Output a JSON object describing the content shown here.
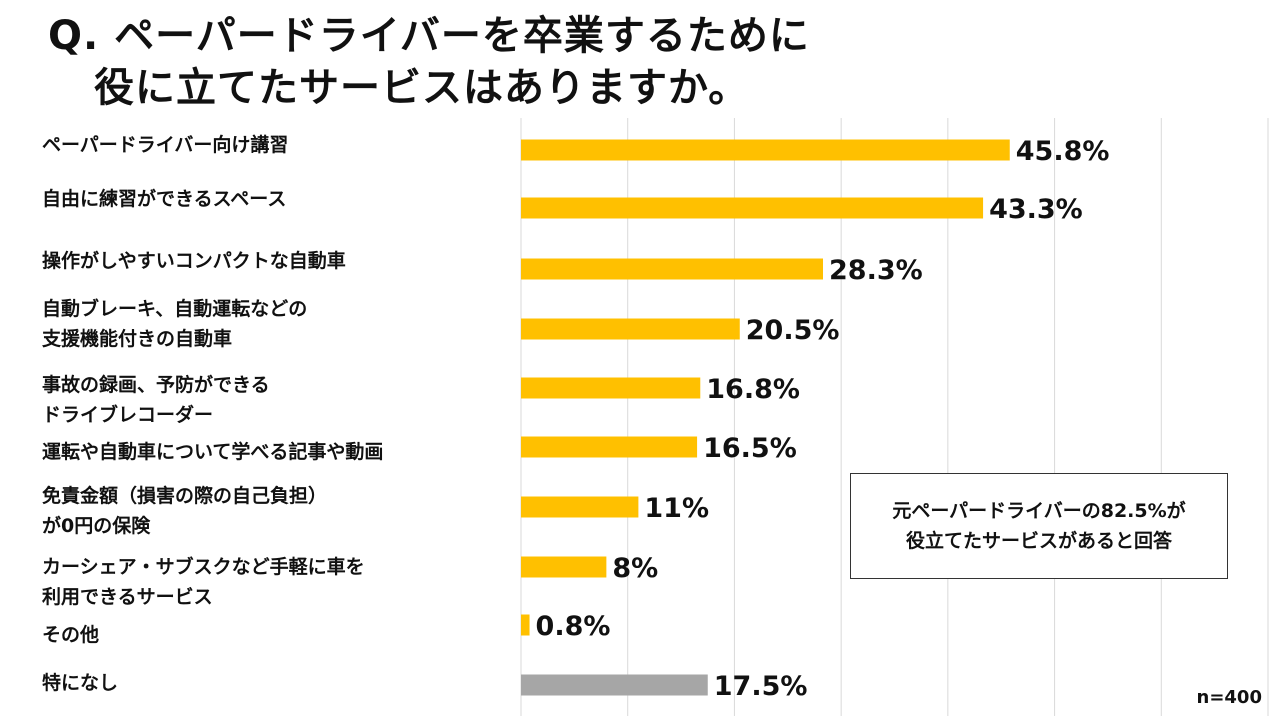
{
  "title": {
    "line1": "Q. ペーパードライバーを卒業するために",
    "line2": "役に立てたサービスはありますか。"
  },
  "note": {
    "line1": "元ペーパードライバーの82.5%が",
    "line2": "役立てたサービスがあると回答"
  },
  "sample_size": "n=400",
  "colors": {
    "primary": "#FFC000",
    "none": "#A6A6A6",
    "grid": "#D9D9D9"
  },
  "chart_data": {
    "type": "bar",
    "orientation": "horizontal",
    "title": "Q. ペーパードライバーを卒業するために役に立てたサービスはありますか。",
    "categories": [
      [
        "ペーパードライバー向け講習"
      ],
      [
        "自由に練習ができるスペース"
      ],
      [
        "操作がしやすいコンパクトな自動車"
      ],
      [
        "自動ブレーキ、自動運転などの",
        "支援機能付きの自動車"
      ],
      [
        "事故の録画、予防ができる",
        "ドライブレコーダー"
      ],
      [
        "運転や自動車について学べる記事や動画"
      ],
      [
        "免責金額（損害の際の自己負担）",
        "が0円の保険"
      ],
      [
        "カーシェア・サブスクなど手軽に車を",
        "利用できるサービス"
      ],
      [
        "その他"
      ],
      [
        "特になし"
      ]
    ],
    "values": [
      45.8,
      43.3,
      28.3,
      20.5,
      16.8,
      16.5,
      11,
      8,
      0.8,
      17.5
    ],
    "value_labels": [
      "45.8%",
      "43.3%",
      "28.3%",
      "20.5%",
      "16.8%",
      "16.5%",
      "11%",
      "8%",
      "0.8%",
      "17.5%"
    ],
    "highlight_gray_index": 9,
    "xlim": [
      0,
      70
    ],
    "grid": true,
    "unit": "%"
  }
}
